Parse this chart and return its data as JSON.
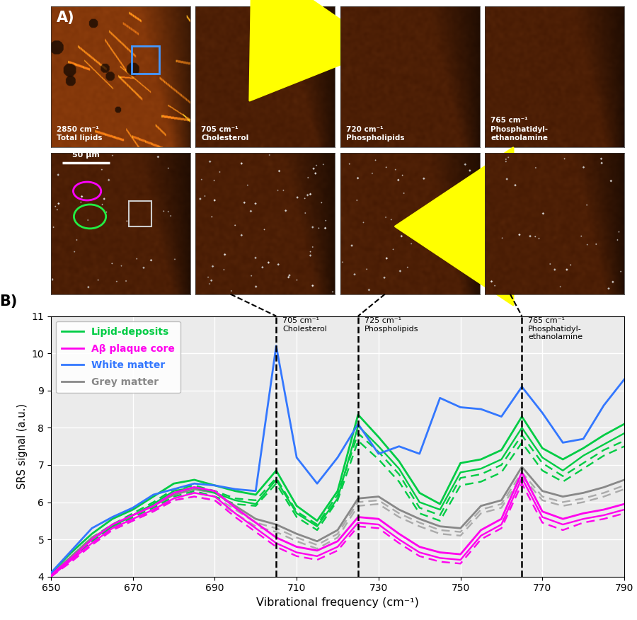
{
  "panel_a_labels_top": [
    "2850 cm⁻¹\nTotal lipids",
    "705 cm⁻¹\nCholesterol",
    "720 cm⁻¹\nPhospholipids",
    "765 cm⁻¹\nPhosphatidyl-\nethanolamine"
  ],
  "xlabel": "Vibrational frequency (cm⁻¹)",
  "ylabel": "SRS signal (a.u.)",
  "xlim": [
    650,
    790
  ],
  "ylim": [
    4,
    11
  ],
  "xticks": [
    650,
    670,
    690,
    710,
    730,
    750,
    770,
    790
  ],
  "yticks": [
    4,
    5,
    6,
    7,
    8,
    9,
    10,
    11
  ],
  "vlines": [
    705,
    725,
    765
  ],
  "x_data": [
    650,
    655,
    660,
    665,
    670,
    675,
    680,
    685,
    690,
    695,
    700,
    705,
    710,
    715,
    720,
    725,
    730,
    735,
    740,
    745,
    750,
    755,
    760,
    765,
    770,
    775,
    780,
    785,
    790
  ],
  "green_solid1": [
    4.1,
    4.65,
    5.15,
    5.55,
    5.8,
    6.15,
    6.5,
    6.6,
    6.45,
    6.3,
    6.2,
    6.85,
    5.9,
    5.5,
    6.3,
    8.35,
    7.75,
    7.1,
    6.25,
    5.95,
    7.05,
    7.15,
    7.4,
    8.3,
    7.45,
    7.15,
    7.45,
    7.8,
    8.1
  ],
  "green_solid2": [
    4.0,
    4.5,
    5.0,
    5.35,
    5.65,
    5.95,
    6.3,
    6.4,
    6.25,
    6.05,
    5.95,
    6.6,
    5.7,
    5.35,
    6.1,
    8.05,
    7.5,
    6.9,
    6.0,
    5.8,
    6.8,
    6.9,
    7.15,
    8.0,
    7.2,
    6.85,
    7.25,
    7.55,
    7.85
  ],
  "green_dashed1": [
    4.05,
    4.55,
    5.05,
    5.4,
    5.7,
    6.0,
    6.35,
    6.45,
    6.3,
    6.1,
    6.05,
    6.65,
    5.75,
    5.4,
    6.2,
    7.85,
    7.35,
    6.75,
    5.85,
    5.65,
    6.65,
    6.75,
    7.0,
    7.8,
    7.05,
    6.7,
    7.05,
    7.4,
    7.65
  ],
  "green_dashed2": [
    4.0,
    4.45,
    4.95,
    5.3,
    5.6,
    5.85,
    6.15,
    6.3,
    6.15,
    5.95,
    5.9,
    6.5,
    5.6,
    5.25,
    6.05,
    7.65,
    7.15,
    6.55,
    5.7,
    5.5,
    6.45,
    6.55,
    6.8,
    7.6,
    6.85,
    6.55,
    6.9,
    7.25,
    7.5
  ],
  "magenta_solid1": [
    4.05,
    4.5,
    5.0,
    5.4,
    5.65,
    5.9,
    6.25,
    6.4,
    6.3,
    5.85,
    5.45,
    5.05,
    4.8,
    4.7,
    4.95,
    5.6,
    5.55,
    5.15,
    4.8,
    4.65,
    4.6,
    5.25,
    5.55,
    6.8,
    5.75,
    5.55,
    5.7,
    5.8,
    5.95
  ],
  "magenta_solid2": [
    4.0,
    4.45,
    4.9,
    5.3,
    5.55,
    5.8,
    6.1,
    6.25,
    6.15,
    5.7,
    5.3,
    4.9,
    4.65,
    4.55,
    4.8,
    5.45,
    5.4,
    5.0,
    4.65,
    4.5,
    4.45,
    5.1,
    5.4,
    6.65,
    5.6,
    5.4,
    5.55,
    5.65,
    5.8
  ],
  "magenta_dashed1": [
    4.0,
    4.4,
    4.85,
    5.25,
    5.5,
    5.75,
    6.05,
    6.15,
    6.05,
    5.6,
    5.2,
    4.8,
    4.55,
    4.45,
    4.7,
    5.35,
    5.3,
    4.9,
    4.55,
    4.4,
    4.35,
    5.0,
    5.3,
    6.5,
    5.45,
    5.25,
    5.45,
    5.55,
    5.7
  ],
  "blue_solid": [
    4.1,
    4.7,
    5.3,
    5.6,
    5.85,
    6.2,
    6.35,
    6.5,
    6.45,
    6.35,
    6.3,
    10.2,
    7.2,
    6.5,
    7.2,
    8.1,
    7.3,
    7.5,
    7.3,
    8.8,
    8.55,
    8.5,
    8.3,
    9.1,
    8.4,
    7.6,
    7.7,
    8.6,
    9.3
  ],
  "grey_solid": [
    4.05,
    4.55,
    5.05,
    5.35,
    5.65,
    5.9,
    6.2,
    6.35,
    6.25,
    5.9,
    5.55,
    5.4,
    5.15,
    4.95,
    5.25,
    6.1,
    6.15,
    5.8,
    5.55,
    5.35,
    5.3,
    5.9,
    6.05,
    6.95,
    6.3,
    6.15,
    6.25,
    6.4,
    6.6
  ],
  "grey_dashed1": [
    4.0,
    4.5,
    5.0,
    5.3,
    5.55,
    5.8,
    6.1,
    6.25,
    6.15,
    5.8,
    5.45,
    5.3,
    5.05,
    4.85,
    5.15,
    6.0,
    6.05,
    5.7,
    5.45,
    5.25,
    5.2,
    5.8,
    5.95,
    6.8,
    6.15,
    6.0,
    6.1,
    6.25,
    6.45
  ],
  "grey_dashed2": [
    4.0,
    4.45,
    4.95,
    5.25,
    5.5,
    5.75,
    6.05,
    6.15,
    6.05,
    5.7,
    5.35,
    5.2,
    4.95,
    4.75,
    5.05,
    5.9,
    5.95,
    5.6,
    5.35,
    5.15,
    5.1,
    5.7,
    5.85,
    6.7,
    6.05,
    5.9,
    6.0,
    6.15,
    6.35
  ]
}
